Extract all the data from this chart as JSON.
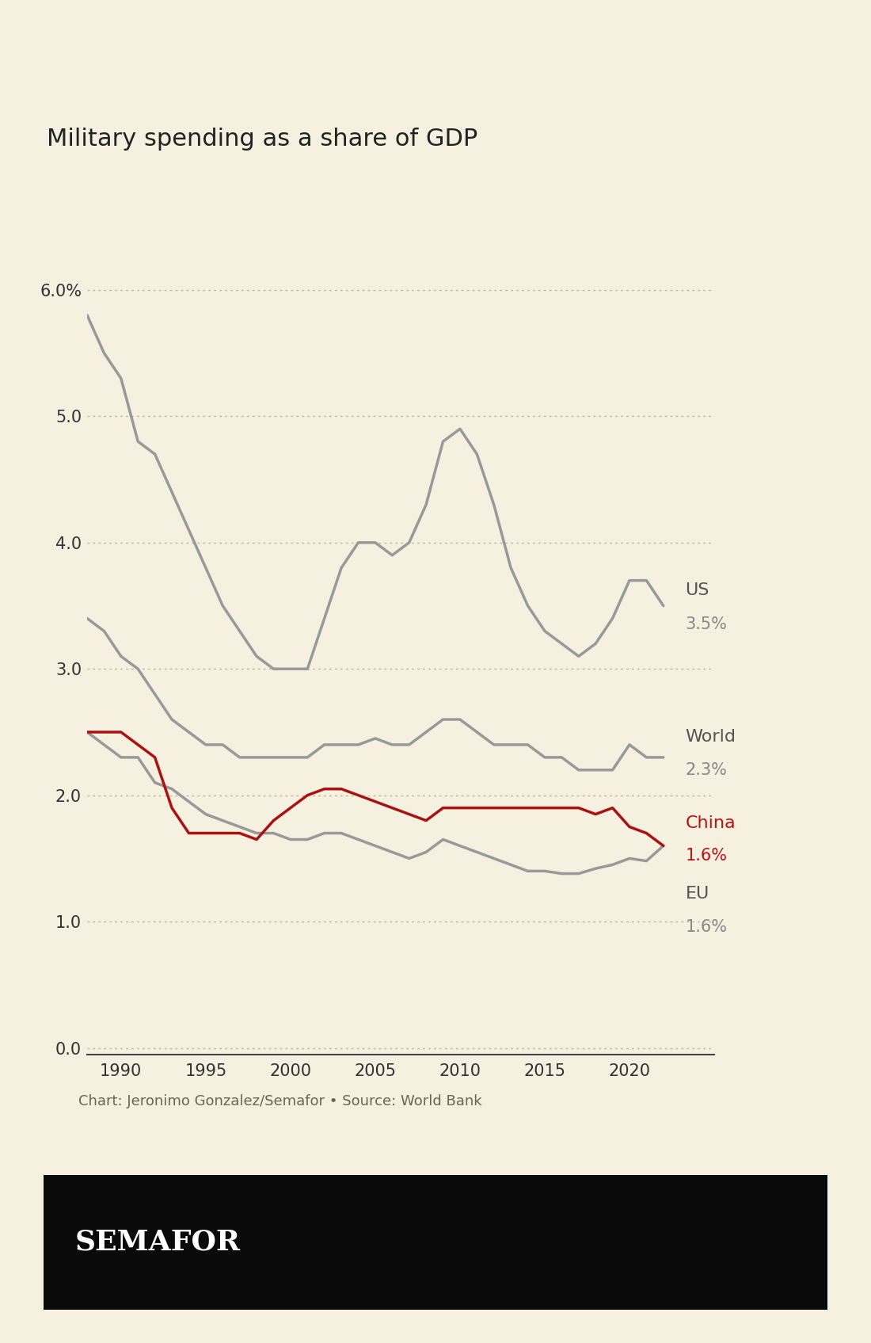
{
  "title": "Military spending as a share of GDP",
  "background_color": "#f5f0e0",
  "plot_bg_color": "#f5f0e0",
  "footer_bg_color": "#0a0a0a",
  "footer_text": "SEMAFOR",
  "attribution": "Chart: Jeronimo Gonzalez/Semafor • Source: World Bank",
  "xlim": [
    1988,
    2025
  ],
  "ylim": [
    -0.05,
    6.7
  ],
  "yticks": [
    0.0,
    1.0,
    2.0,
    3.0,
    4.0,
    5.0,
    6.0
  ],
  "ytick_labels": [
    "0.0",
    "1.0",
    "2.0",
    "3.0",
    "4.0",
    "5.0",
    "6.0%"
  ],
  "xticks": [
    1990,
    1995,
    2000,
    2005,
    2010,
    2015,
    2020
  ],
  "series": {
    "US": {
      "color": "#999999",
      "label": "US",
      "value_label": "3.5%",
      "data": {
        "1988": 5.8,
        "1989": 5.5,
        "1990": 5.3,
        "1991": 4.8,
        "1992": 4.7,
        "1993": 4.4,
        "1994": 4.1,
        "1995": 3.8,
        "1996": 3.5,
        "1997": 3.3,
        "1998": 3.1,
        "1999": 3.0,
        "2000": 3.0,
        "2001": 3.0,
        "2002": 3.4,
        "2003": 3.8,
        "2004": 4.0,
        "2005": 4.0,
        "2006": 3.9,
        "2007": 4.0,
        "2008": 4.3,
        "2009": 4.8,
        "2010": 4.9,
        "2011": 4.7,
        "2012": 4.3,
        "2013": 3.8,
        "2014": 3.5,
        "2015": 3.3,
        "2016": 3.2,
        "2017": 3.1,
        "2018": 3.2,
        "2019": 3.4,
        "2020": 3.7,
        "2021": 3.7,
        "2022": 3.5
      }
    },
    "World": {
      "color": "#999999",
      "label": "World",
      "value_label": "2.3%",
      "data": {
        "1988": 3.4,
        "1989": 3.3,
        "1990": 3.1,
        "1991": 3.0,
        "1992": 2.8,
        "1993": 2.6,
        "1994": 2.5,
        "1995": 2.4,
        "1996": 2.4,
        "1997": 2.3,
        "1998": 2.3,
        "1999": 2.3,
        "2000": 2.3,
        "2001": 2.3,
        "2002": 2.4,
        "2003": 2.4,
        "2004": 2.4,
        "2005": 2.45,
        "2006": 2.4,
        "2007": 2.4,
        "2008": 2.5,
        "2009": 2.6,
        "2010": 2.6,
        "2011": 2.5,
        "2012": 2.4,
        "2013": 2.4,
        "2014": 2.4,
        "2015": 2.3,
        "2016": 2.3,
        "2017": 2.2,
        "2018": 2.2,
        "2019": 2.2,
        "2020": 2.4,
        "2021": 2.3,
        "2022": 2.3
      }
    },
    "China": {
      "color": "#aa1111",
      "label": "China",
      "value_label": "1.6%",
      "data": {
        "1988": 2.5,
        "1989": 2.5,
        "1990": 2.5,
        "1991": 2.4,
        "1992": 2.3,
        "1993": 1.9,
        "1994": 1.7,
        "1995": 1.7,
        "1996": 1.7,
        "1997": 1.7,
        "1998": 1.65,
        "1999": 1.8,
        "2000": 1.9,
        "2001": 2.0,
        "2002": 2.05,
        "2003": 2.05,
        "2004": 2.0,
        "2005": 1.95,
        "2006": 1.9,
        "2007": 1.85,
        "2008": 1.8,
        "2009": 1.9,
        "2010": 1.9,
        "2011": 1.9,
        "2012": 1.9,
        "2013": 1.9,
        "2014": 1.9,
        "2015": 1.9,
        "2016": 1.9,
        "2017": 1.9,
        "2018": 1.85,
        "2019": 1.9,
        "2020": 1.75,
        "2021": 1.7,
        "2022": 1.6
      }
    },
    "EU": {
      "color": "#999999",
      "label": "EU",
      "value_label": "1.6%",
      "data": {
        "1988": 2.5,
        "1989": 2.4,
        "1990": 2.3,
        "1991": 2.3,
        "1992": 2.1,
        "1993": 2.05,
        "1994": 1.95,
        "1995": 1.85,
        "1996": 1.8,
        "1997": 1.75,
        "1998": 1.7,
        "1999": 1.7,
        "2000": 1.65,
        "2001": 1.65,
        "2002": 1.7,
        "2003": 1.7,
        "2004": 1.65,
        "2005": 1.6,
        "2006": 1.55,
        "2007": 1.5,
        "2008": 1.55,
        "2009": 1.65,
        "2010": 1.6,
        "2011": 1.55,
        "2012": 1.5,
        "2013": 1.45,
        "2014": 1.4,
        "2015": 1.4,
        "2016": 1.38,
        "2017": 1.38,
        "2018": 1.42,
        "2019": 1.45,
        "2020": 1.5,
        "2021": 1.48,
        "2022": 1.6
      }
    }
  },
  "grid_color": "#ccccaa",
  "line_width": 2.5,
  "title_fontsize": 22,
  "label_fontsize": 16,
  "tick_fontsize": 15,
  "attribution_fontsize": 13
}
